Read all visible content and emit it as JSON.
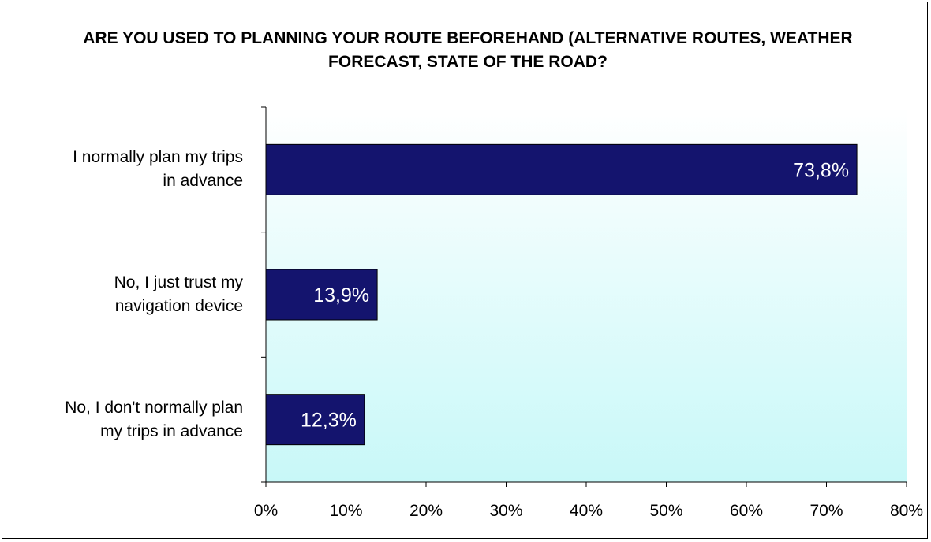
{
  "chart_data": {
    "type": "bar",
    "orientation": "horizontal",
    "title": "ARE YOU USED TO PLANNING YOUR ROUTE BEFOREHAND (ALTERNATIVE ROUTES, WEATHER FORECAST, STATE OF THE ROAD?",
    "categories": [
      "I normally plan my trips in advance",
      "No, I just trust my navigation device",
      "No, I don't normally plan my trips in advance"
    ],
    "category_lines": [
      [
        "I normally plan my trips",
        "in advance"
      ],
      [
        "No, I just trust my",
        "navigation device"
      ],
      [
        "No, I don't normally plan",
        "my trips in advance"
      ]
    ],
    "values": [
      73.8,
      13.9,
      12.3
    ],
    "value_labels": [
      "73,8%",
      "13,9%",
      "12,3%"
    ],
    "xlabel": "",
    "ylabel": "",
    "xlim": [
      0,
      80
    ],
    "xticks": [
      0,
      10,
      20,
      30,
      40,
      50,
      60,
      70,
      80
    ],
    "xtick_labels": [
      "0%",
      "10%",
      "20%",
      "30%",
      "40%",
      "50%",
      "60%",
      "70%",
      "80%"
    ],
    "grid": false,
    "legend": "none",
    "colors": {
      "bar": "#14146e",
      "bar_border": "#000000",
      "value_label": "#ffffff",
      "plot_gradient_top": "#ffffff",
      "plot_gradient_bottom": "#c8f8f8"
    }
  }
}
